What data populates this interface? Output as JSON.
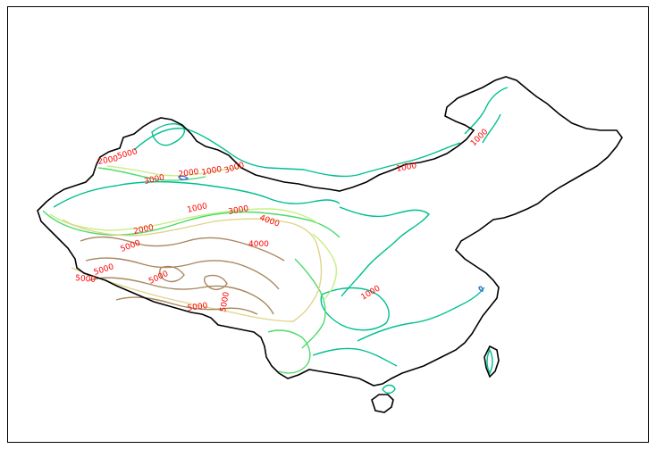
{
  "map": {
    "colors": {
      "border": "#000000",
      "c1000": "#00bf8f",
      "c2000": "#4ddb6a",
      "c3000": "#c6ef84",
      "c4000": "#e0d48a",
      "c5000": "#a8875f",
      "low": "#2a6fd6",
      "label": "#ff0000"
    },
    "contour_levels": [
      1000,
      2000,
      3000,
      4000,
      5000
    ],
    "labels": [
      {
        "id": "lbl-1",
        "text": "5000"
      },
      {
        "id": "lbl-2",
        "text": "2000"
      },
      {
        "id": "lbl-3",
        "text": "3000"
      },
      {
        "id": "lbl-4",
        "text": "2000"
      },
      {
        "id": "lbl-5",
        "text": "1000"
      },
      {
        "id": "lbl-6",
        "text": "3000"
      },
      {
        "id": "lbl-7",
        "text": "1000"
      },
      {
        "id": "lbl-8",
        "text": "3000"
      },
      {
        "id": "lbl-9",
        "text": "4000"
      },
      {
        "id": "lbl-10",
        "text": "2000"
      },
      {
        "id": "lbl-11",
        "text": "4000"
      },
      {
        "id": "lbl-12",
        "text": "5000"
      },
      {
        "id": "lbl-13",
        "text": "5000"
      },
      {
        "id": "lbl-14",
        "text": "5000"
      },
      {
        "id": "lbl-15",
        "text": "5000"
      },
      {
        "id": "lbl-16",
        "text": "5000"
      },
      {
        "id": "lbl-17",
        "text": "5000"
      },
      {
        "id": "lbl-18",
        "text": "1000"
      },
      {
        "id": "lbl-19",
        "text": "1000"
      },
      {
        "id": "lbl-20",
        "text": "1000"
      },
      {
        "id": "lbl-21",
        "text": "3000"
      }
    ]
  }
}
